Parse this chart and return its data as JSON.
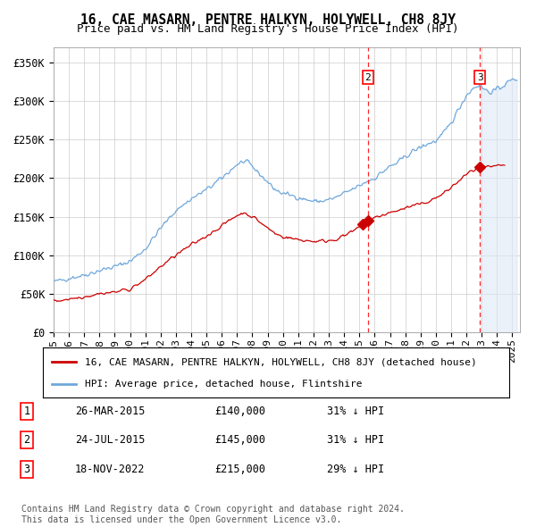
{
  "title": "16, CAE MASARN, PENTRE HALKYN, HOLYWELL, CH8 8JY",
  "subtitle": "Price paid vs. HM Land Registry's House Price Index (HPI)",
  "ylim": [
    0,
    370000
  ],
  "yticks": [
    0,
    50000,
    100000,
    150000,
    200000,
    250000,
    300000,
    350000
  ],
  "ytick_labels": [
    "£0",
    "£50K",
    "£100K",
    "£150K",
    "£200K",
    "£250K",
    "£300K",
    "£350K"
  ],
  "xlim_start": 1995.0,
  "xlim_end": 2025.5,
  "sale_dates": [
    2015.23,
    2015.56,
    2022.88
  ],
  "sale_prices": [
    140000,
    145000,
    215000
  ],
  "show_vline": [
    false,
    true,
    true
  ],
  "show_box": [
    false,
    true,
    true
  ],
  "sale_labels": [
    "1",
    "2",
    "3"
  ],
  "hpi_color": "#6fa8dc",
  "sale_color": "#cc0000",
  "shade_color": "#dce8f5",
  "legend_entries": [
    "16, CAE MASARN, PENTRE HALKYN, HOLYWELL, CH8 8JY (detached house)",
    "HPI: Average price, detached house, Flintshire"
  ],
  "table_rows": [
    {
      "num": "1",
      "date": "26-MAR-2015",
      "price": "£140,000",
      "hpi": "31% ↓ HPI"
    },
    {
      "num": "2",
      "date": "24-JUL-2015",
      "price": "£145,000",
      "hpi": "31% ↓ HPI"
    },
    {
      "num": "3",
      "date": "18-NOV-2022",
      "price": "£215,000",
      "hpi": "29% ↓ HPI"
    }
  ],
  "footnote": "Contains HM Land Registry data © Crown copyright and database right 2024.\nThis data is licensed under the Open Government Licence v3.0.",
  "bg_color": "#ffffff",
  "grid_color": "#cccccc"
}
